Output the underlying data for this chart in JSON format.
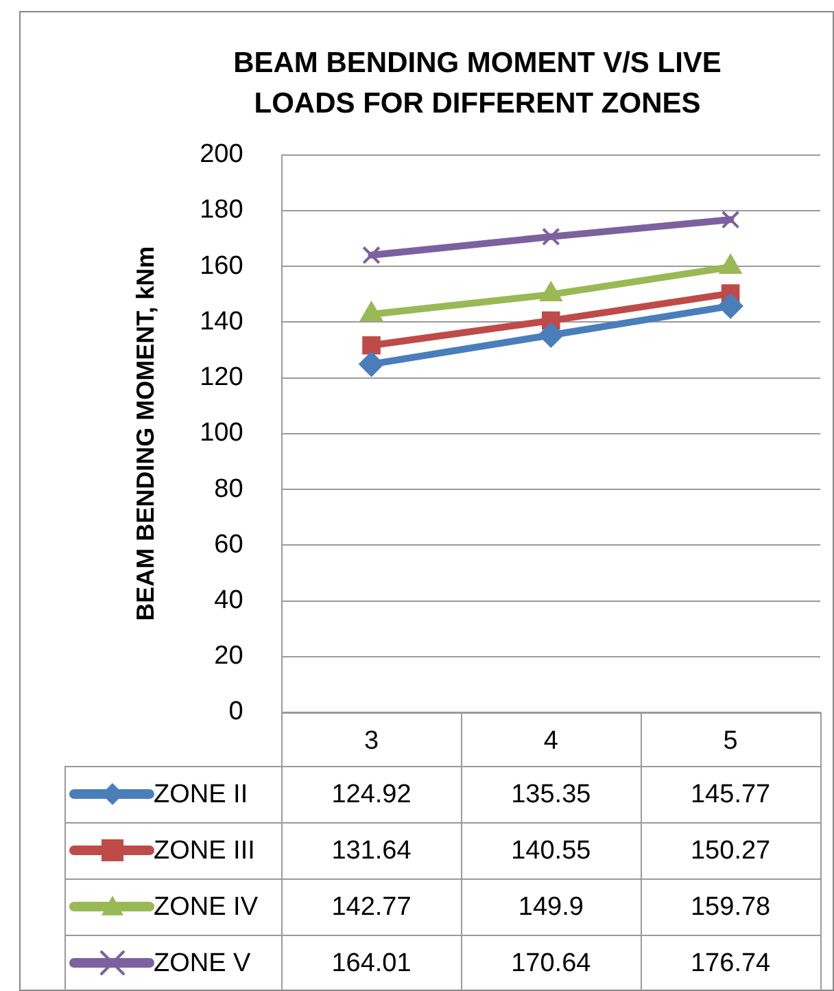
{
  "chart_data": {
    "type": "line",
    "title": "BEAM BENDING MOMENT V/S LIVE LOADS FOR DIFFERENT ZONES",
    "ylabel": "BEAM BENDING MOMENT, kNm",
    "categories": [
      "3",
      "4",
      "5"
    ],
    "series": [
      {
        "name": "ZONE II",
        "color": "#4a7ebb",
        "marker": "diamond",
        "values": [
          124.92,
          135.35,
          145.77
        ]
      },
      {
        "name": "ZONE III",
        "color": "#be4b48",
        "marker": "square",
        "values": [
          131.64,
          140.55,
          150.27
        ]
      },
      {
        "name": "ZONE IV",
        "color": "#98b954",
        "marker": "triangle",
        "values": [
          142.77,
          149.9,
          159.78
        ]
      },
      {
        "name": "ZONE V",
        "color": "#7d60a0",
        "marker": "cross",
        "values": [
          164.01,
          170.64,
          176.74
        ]
      }
    ],
    "ylim": [
      0,
      200
    ],
    "yticks": [
      0,
      20,
      40,
      60,
      80,
      100,
      120,
      140,
      160,
      180,
      200
    ],
    "grid": "y",
    "legend": "bottom",
    "data_labels": true,
    "line_style": "solid"
  }
}
